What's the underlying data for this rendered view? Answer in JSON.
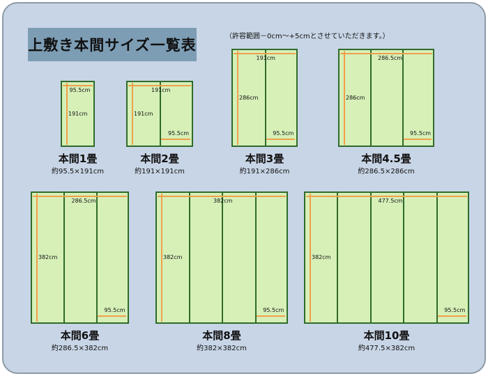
{
  "title": "上敷き本間サイズ一覧表",
  "note": "（許容範囲－0cm～+5cmとさせていただきます。）",
  "colors": {
    "background": "#c8d5e6",
    "title_box": "#7d9db5",
    "mat_fill": "#d6f0b8",
    "mat_border": "#2f6b2a",
    "arrow": "#f0a04a"
  },
  "mats": [
    {
      "name": "本間1畳",
      "size": "約95.5×191cm",
      "width_label": "95.5cm",
      "length_label": "191cm",
      "panels": 1,
      "panel_label": ""
    },
    {
      "name": "本間2畳",
      "size": "約191×191cm",
      "width_label": "191cm",
      "length_label": "191cm",
      "panels": 2,
      "panel_label": "95.5cm"
    },
    {
      "name": "本間3畳",
      "size": "約191×286cm",
      "width_label": "191cm",
      "length_label": "286cm",
      "panels": 2,
      "panel_label": "95.5cm"
    },
    {
      "name": "本間4.5畳",
      "size": "約286.5×286cm",
      "width_label": "286.5cm",
      "length_label": "286cm",
      "panels": 3,
      "panel_label": "95.5cm"
    },
    {
      "name": "本間6畳",
      "size": "約286.5×382cm",
      "width_label": "286.5cm",
      "length_label": "382cm",
      "panels": 3,
      "panel_label": "95.5cm"
    },
    {
      "name": "本間8畳",
      "size": "約382×382cm",
      "width_label": "382cm",
      "length_label": "382cm",
      "panels": 4,
      "panel_label": "95.5cm"
    },
    {
      "name": "本間10畳",
      "size": "約477.5×382cm",
      "width_label": "477.5cm",
      "length_label": "382cm",
      "panels": 5,
      "panel_label": "95.5cm"
    }
  ]
}
